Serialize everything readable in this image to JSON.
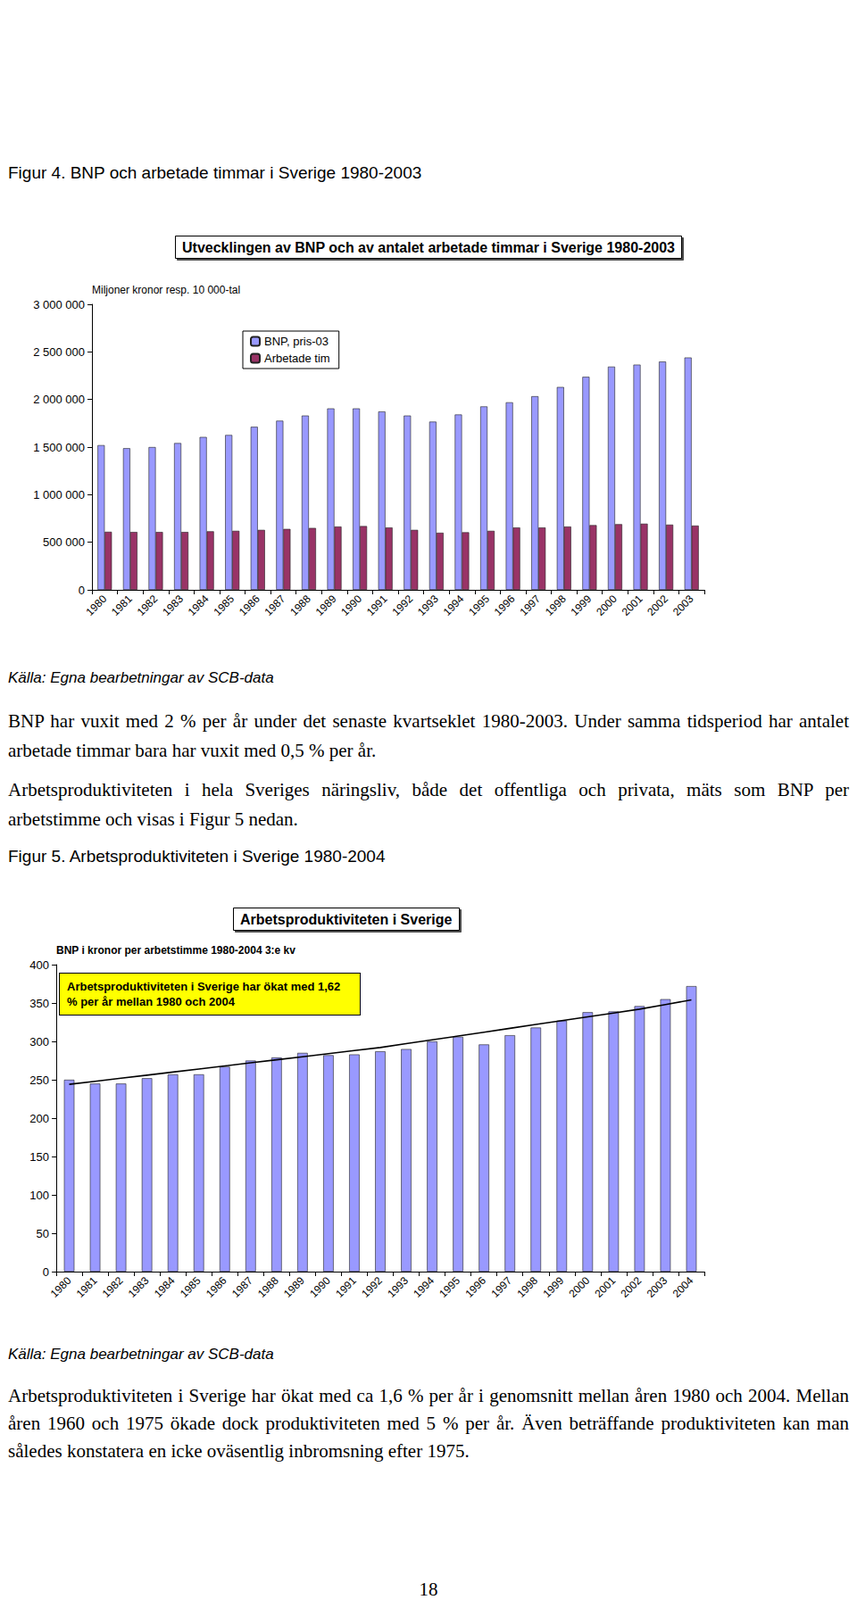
{
  "document": {
    "figure_4": {
      "caption": "Figur 4. BNP och arbetade timmar i Sverige 1980-2003",
      "source": "Källa: Egna bearbetningar av SCB-data"
    },
    "text_1": [
      "BNP har vuxit med 2 % per år under det senaste kvartseklet 1980-2003. Under samma tidsperiod har antalet arbetade timmar bara har vuxit med 0,5 % per år.",
      "Arbetsproduktiviteten i hela Sveriges näringsliv, både det offentliga och privata, mäts som BNP per arbetstimme och visas i Figur 5 nedan."
    ],
    "figure_5": {
      "caption": "Figur 5. Arbetsproduktiviteten i Sverige 1980-2004",
      "source": "Källa: Egna bearbetningar av SCB-data"
    },
    "text_2": [
      "Arbetsproduktiviteten i Sverige har ökat med ca 1,6 % per år i genomsnitt mellan åren 1980 och 2004. Mellan åren 1960 och 1975 ökade dock produktiviteten med 5 % per år. Även beträffande produktiviteten kan man således konstatera en icke oväsentlig inbromsning efter 1975."
    ],
    "page_number": "18"
  },
  "chart_data": [
    {
      "type": "bar",
      "title": "Utvecklingen av BNP och av antalet arbetade timmar i Sverige 1980-2003",
      "y_label": "Miljoner kronor resp. 10 000-tal",
      "categories": [
        "1980",
        "1981",
        "1982",
        "1983",
        "1984",
        "1985",
        "1986",
        "1987",
        "1988",
        "1989",
        "1990",
        "1991",
        "1992",
        "1993",
        "1994",
        "1995",
        "1996",
        "1997",
        "1998",
        "1999",
        "2000",
        "2001",
        "2002",
        "2003"
      ],
      "series": [
        {
          "name": "BNP, pris-03",
          "color": "#9999ff",
          "values": [
            1520000,
            1488000,
            1500000,
            1542000,
            1606000,
            1627000,
            1713000,
            1777000,
            1831000,
            1906000,
            1906000,
            1874000,
            1831000,
            1767000,
            1842000,
            1927000,
            1970000,
            2034000,
            2131000,
            2238000,
            2345000,
            2366000,
            2398000,
            2441000
          ]
        },
        {
          "name": "Arbetade tim",
          "color": "#993366",
          "values": [
            610000,
            608000,
            608000,
            608000,
            615000,
            620000,
            630000,
            640000,
            650000,
            665000,
            670000,
            655000,
            630000,
            600000,
            605000,
            620000,
            655000,
            655000,
            665000,
            680000,
            690000,
            695000,
            685000,
            675000
          ]
        }
      ],
      "ylim": [
        0,
        3000000
      ],
      "yticks": [
        0,
        {
          "value": 500000,
          "label": "500 000"
        },
        {
          "value": 1000000,
          "label": "1 000 000"
        },
        {
          "value": 1500000,
          "label": "1 500 000"
        },
        {
          "value": 2000000,
          "label": "2 000 000"
        },
        {
          "value": 2500000,
          "label": "2 500 000"
        },
        {
          "value": 3000000,
          "label": "3 000 000"
        }
      ],
      "grid": false,
      "legend": "upper left"
    },
    {
      "type": "bar",
      "title": "Arbetsproduktiviteten i Sverige",
      "y_label": "BNP i kronor per arbetstimme 1980-2004 3:e kv",
      "annotation": "Arbetsproduktiviteten i Sverige har ökat med 1,62 % per år mellan 1980 och 2004",
      "categories": [
        "1980",
        "1981",
        "1982",
        "1983",
        "1984",
        "1985",
        "1986",
        "1987",
        "1988",
        "1989",
        "1990",
        "1991",
        "1992",
        "1993",
        "1994",
        "1995",
        "1996",
        "1997",
        "1998",
        "1999",
        "2000",
        "2001",
        "2002",
        "2003",
        "2004"
      ],
      "series": [
        {
          "type": "bar",
          "color": "#9999ff",
          "values": [
            250,
            245,
            245,
            252,
            257,
            257,
            267,
            275,
            279,
            285,
            282,
            283,
            287,
            290,
            300,
            306,
            296,
            308,
            318,
            327,
            338,
            339,
            346,
            355,
            372
          ]
        },
        {
          "type": "line",
          "color": "#000000",
          "marker": "none",
          "values": [
            244,
            248,
            252,
            256,
            260,
            264,
            268,
            272,
            276,
            280,
            284,
            288,
            292,
            297,
            302,
            307,
            312,
            317,
            322,
            327,
            332,
            337,
            342,
            348,
            354
          ]
        }
      ],
      "ylim": [
        0,
        400
      ],
      "yticks": [
        0,
        50,
        100,
        150,
        200,
        250,
        300,
        350,
        400
      ],
      "grid": false
    }
  ]
}
